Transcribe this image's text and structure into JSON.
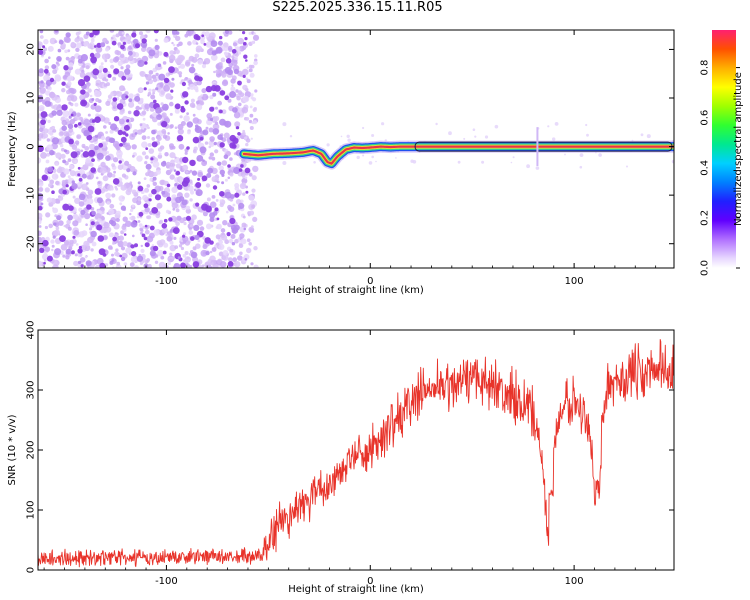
{
  "title": "S225.2025.336.15.11.R05",
  "colors": {
    "snr_line": "#e8332a",
    "noise": "#8a3fe0",
    "band_core": "#e8334a",
    "band_mid": "#f0e030",
    "band_outer": "#30d090",
    "band_edge": "#2050f0"
  },
  "chart_data": [
    {
      "type": "heatmap",
      "title": "S225.2025.336.15.11.R05",
      "xlabel": "Height of straight line (km)",
      "ylabel": "Frequency (Hz)",
      "xlim": [
        -163,
        149
      ],
      "ylim": [
        -25,
        24
      ],
      "xticks": [
        -100,
        0,
        100
      ],
      "xtick_labels": [
        "-100",
        "0",
        "100"
      ],
      "yticks": [
        -20,
        -10,
        0,
        10,
        20
      ],
      "ytick_labels": [
        "-20",
        "-10",
        "0",
        "10",
        "20"
      ],
      "noise_region_x": [
        -163,
        -60
      ],
      "signal_start_x": -62,
      "signal_frequency_track": {
        "x": [
          -62,
          -55,
          -48,
          -40,
          -33,
          -28,
          -24,
          -21,
          -19,
          -16,
          -12,
          -8,
          -4,
          0,
          5,
          10,
          15,
          20,
          25,
          30,
          40,
          60,
          80,
          100,
          120,
          149
        ],
        "y": [
          -1.5,
          -1.8,
          -1.5,
          -1.4,
          -1.2,
          -0.8,
          -1.5,
          -3.2,
          -3.5,
          -2.0,
          -0.6,
          -0.2,
          -0.3,
          -0.2,
          0.0,
          -0.1,
          0.0,
          0.0,
          0.0,
          0.0,
          0.0,
          0.0,
          0.0,
          0.0,
          0.0,
          0.0
        ]
      },
      "colorbar": {
        "label": "Normalized spectral amplitude",
        "range": [
          0.0,
          0.95
        ],
        "ticks": [
          0.0,
          0.2,
          0.4,
          0.6,
          0.8
        ],
        "tick_labels": [
          "0.0",
          "0.2",
          "0.4",
          "0.6",
          "0.8"
        ],
        "colormap": [
          "#ffffff",
          "#e0d0ff",
          "#c080ff",
          "#7000ff",
          "#2000ff",
          "#0060ff",
          "#00c8ff",
          "#00e890",
          "#30ff30",
          "#a0ff00",
          "#ffff00",
          "#ffb000",
          "#ff5000",
          "#ff2060"
        ]
      }
    },
    {
      "type": "line",
      "xlabel": "Height of straight line (km)",
      "ylabel": "SNR (10 * v/v)",
      "xlim": [
        -163,
        149
      ],
      "ylim": [
        0,
        400
      ],
      "xticks": [
        -100,
        0,
        100
      ],
      "xtick_labels": [
        "-100",
        "0",
        "100"
      ],
      "yticks": [
        0,
        100,
        200,
        300,
        400
      ],
      "ytick_labels": [
        "0",
        "100",
        "200",
        "300",
        "400"
      ],
      "series": [
        {
          "name": "SNR",
          "x": [
            -163,
            -140,
            -120,
            -100,
            -80,
            -60,
            -53,
            -50,
            -47,
            -45,
            -40,
            -35,
            -30,
            -25,
            -20,
            -15,
            -12,
            -10,
            -5,
            0,
            5,
            10,
            15,
            20,
            25,
            30,
            35,
            40,
            45,
            50,
            55,
            60,
            65,
            70,
            75,
            80,
            83,
            86,
            87,
            88,
            92,
            96,
            100,
            105,
            108,
            110,
            112,
            115,
            120,
            125,
            130,
            135,
            140,
            145,
            149
          ],
          "y": [
            20,
            20,
            20,
            22,
            22,
            22,
            25,
            45,
            60,
            80,
            90,
            100,
            115,
            130,
            145,
            160,
            175,
            185,
            195,
            205,
            215,
            235,
            255,
            285,
            300,
            300,
            305,
            310,
            320,
            320,
            315,
            305,
            300,
            290,
            280,
            260,
            230,
            120,
            30,
            100,
            260,
            290,
            280,
            270,
            230,
            130,
            140,
            290,
            310,
            320,
            330,
            320,
            340,
            335,
            340
          ]
        }
      ]
    }
  ]
}
